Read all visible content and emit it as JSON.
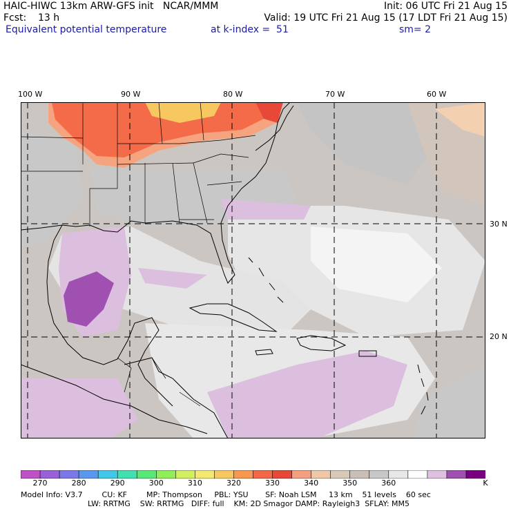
{
  "header": {
    "left_line1": "HAIC-HIWC 13km ARW-GFS init   NCAR/MMM",
    "init": "Init: 06 UTC Fri 21 Aug 15",
    "fcst_label": "Fcst:",
    "fcst_value": "13 h",
    "valid": "Valid: 19 UTC Fri 21 Aug 15 (17 LDT Fri 21 Aug 15)",
    "field": "Equivalent potential temperature",
    "k_index": "at k-index =  51",
    "smooth": "sm= 2"
  },
  "map": {
    "lon_labels": [
      "100 W",
      "90 W",
      "80 W",
      "70 W",
      "60 W"
    ],
    "lat_labels": [
      "30 N",
      "20 N"
    ]
  },
  "colorbar": {
    "labels": [
      "270",
      "280",
      "290",
      "300",
      "310",
      "320",
      "330",
      "340",
      "350",
      "360",
      "K"
    ],
    "colors": [
      "#c050c8",
      "#9a60d8",
      "#7a78e8",
      "#5a98f0",
      "#40c8e8",
      "#40e0b0",
      "#58e878",
      "#90ee58",
      "#d0f060",
      "#f4e870",
      "#f8c860",
      "#f89850",
      "#f46848",
      "#e84838",
      "#f4a080",
      "#f0c8a8",
      "#d8c8b8",
      "#c8c0b8",
      "#c8c8c8",
      "#e8e8e8",
      "#ffffff",
      "#e0c0e0",
      "#a050b0",
      "#780080"
    ]
  },
  "footer": {
    "line1": "Model Info: V3.7        CU: KF        MP: Thompson     PBL: YSU       SF: Noah LSM     13 km    51 levels    60 sec",
    "line2": "LW: RRTMG    SW: RRTMG   DIFF: full    KM: 2D Smagor DAMP: Rayleigh3  SFLAY: MM5"
  }
}
